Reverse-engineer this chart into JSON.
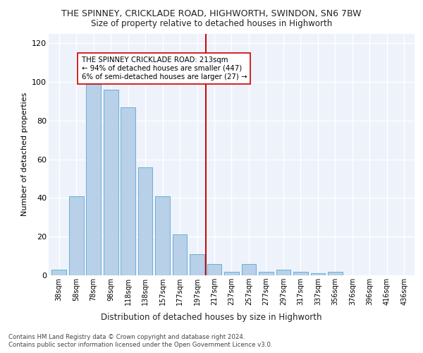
{
  "title_line1": "THE SPINNEY, CRICKLADE ROAD, HIGHWORTH, SWINDON, SN6 7BW",
  "title_line2": "Size of property relative to detached houses in Highworth",
  "xlabel": "Distribution of detached houses by size in Highworth",
  "ylabel": "Number of detached properties",
  "bar_categories": [
    "38sqm",
    "58sqm",
    "78sqm",
    "98sqm",
    "118sqm",
    "138sqm",
    "157sqm",
    "177sqm",
    "197sqm",
    "217sqm",
    "237sqm",
    "257sqm",
    "277sqm",
    "297sqm",
    "317sqm",
    "337sqm",
    "356sqm",
    "376sqm",
    "396sqm",
    "416sqm",
    "436sqm"
  ],
  "bar_values": [
    3,
    41,
    99,
    96,
    87,
    56,
    41,
    21,
    11,
    6,
    2,
    6,
    2,
    3,
    2,
    1,
    2,
    0,
    0,
    0,
    0
  ],
  "bar_color": "#b8d0e8",
  "bar_edge_color": "#6aaed6",
  "ylim": [
    0,
    125
  ],
  "yticks": [
    0,
    20,
    40,
    60,
    80,
    100,
    120
  ],
  "red_line_color": "#cc0000",
  "annotation_label": "THE SPINNEY CRICKLADE ROAD: 213sqm",
  "annotation_sub1": "← 94% of detached houses are smaller (447)",
  "annotation_sub2": "6% of semi-detached houses are larger (27) →",
  "footer_line1": "Contains HM Land Registry data © Crown copyright and database right 2024.",
  "footer_line2": "Contains public sector information licensed under the Open Government Licence v3.0.",
  "background_color": "#eef2fb",
  "grid_color": "#ffffff"
}
